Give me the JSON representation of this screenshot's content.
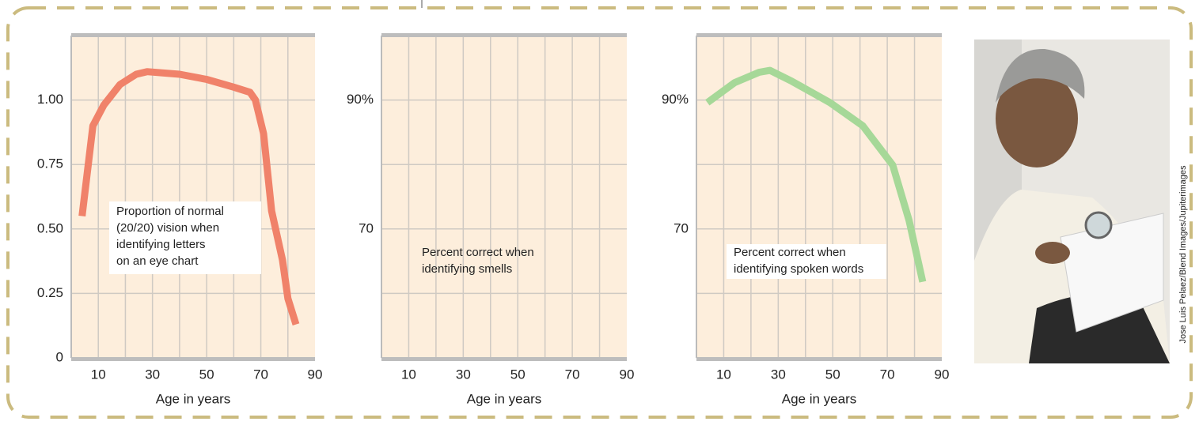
{
  "chart_data": [
    {
      "type": "line",
      "color": "#f0826a",
      "annotation": [
        "Proportion of normal",
        "(20/20) vision when",
        "identifying  letters",
        "on an eye chart"
      ],
      "x": [
        4,
        8,
        12,
        18,
        24,
        28,
        40,
        50,
        60,
        66,
        68,
        71,
        74,
        78,
        80,
        83
      ],
      "values": [
        0.55,
        0.9,
        0.98,
        1.06,
        1.1,
        1.11,
        1.1,
        1.08,
        1.05,
        1.03,
        1.0,
        0.87,
        0.57,
        0.38,
        0.23,
        0.13
      ],
      "xlim": [
        0,
        90
      ],
      "xticks": [
        10,
        30,
        50,
        70,
        90
      ],
      "xgrid": [
        10,
        20,
        30,
        40,
        50,
        60,
        70,
        80
      ],
      "ylim": [
        0,
        1.25
      ],
      "yticks": [
        0,
        {
          "value": 0.25,
          "label": "0.25"
        },
        {
          "value": 0.5,
          "label": "0.50"
        },
        {
          "value": 0.75,
          "label": "0.75"
        },
        {
          "value": 1,
          "label": "1.00"
        }
      ],
      "ygrid": [
        0.25,
        0.5,
        0.75,
        1
      ],
      "xlabel": "Age in years",
      "grid": true
    },
    {
      "type": "line",
      "annotation": [
        "Percent correct when",
        "identifying smells"
      ],
      "xlim": [
        0,
        90
      ],
      "xticks": [
        10,
        30,
        50,
        70,
        90
      ],
      "xgrid": [
        10,
        20,
        30,
        40,
        50,
        60,
        70,
        80
      ],
      "ylim": [
        50,
        100
      ],
      "yticks": [
        {
          "value": 90,
          "label": "90%"
        },
        70
      ],
      "ygrid": [
        60,
        70,
        80,
        90
      ],
      "xlabel": "Age in years",
      "grid": true
    },
    {
      "type": "line",
      "color": "#a6d898",
      "annotation": [
        "Percent correct when",
        "identifying spoken words"
      ],
      "x": [
        4,
        14,
        23,
        27,
        35,
        49,
        61,
        72,
        78,
        83
      ],
      "values": [
        89.6,
        92.7,
        94.3,
        94.6,
        92.9,
        89.6,
        86,
        79.9,
        71.3,
        61.8
      ],
      "xlim": [
        0,
        90
      ],
      "xticks": [
        10,
        30,
        50,
        70,
        90
      ],
      "xgrid": [
        10,
        20,
        30,
        40,
        50,
        60,
        70,
        80
      ],
      "ylim": [
        50,
        100
      ],
      "yticks": [
        {
          "value": 90,
          "label": "90%"
        },
        70
      ],
      "ygrid": [
        60,
        70,
        80,
        90
      ],
      "xlabel": "Age in years",
      "grid": true
    }
  ],
  "photo_credit": "Jose Luis Pelaez/Blend Images/Jupiterimages"
}
